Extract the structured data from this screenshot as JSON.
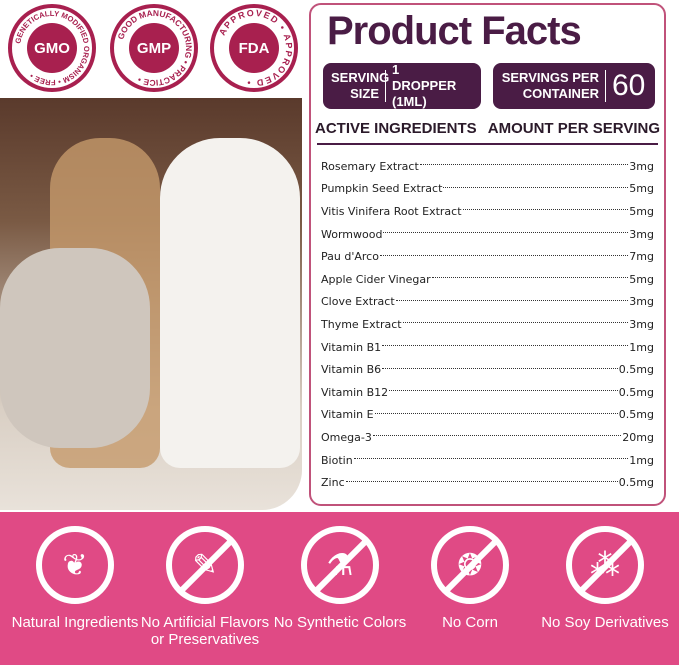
{
  "badges": [
    {
      "center": "GMO",
      "ring": "GENETICALLY MODIFIED ORGANISM • FREE •"
    },
    {
      "center": "GMP",
      "ring": "GOOD MANUFACTURING • PRACTICE •"
    },
    {
      "center": "FDA",
      "ring": "APPROVED • APPROVED •"
    }
  ],
  "facts": {
    "title": "Product Facts",
    "serving_size_label": "SERVING SIZE",
    "serving_size_value": "1 DROPPER (1ML)",
    "servings_label": "SERVINGS PER CONTAINER",
    "servings_value": "60",
    "col_ingredients": "ACTIVE INGREDIENTS",
    "col_amount": "AMOUNT PER SERVING",
    "ingredients": [
      {
        "name": "Rosemary Extract",
        "amount": "3mg"
      },
      {
        "name": "Pumpkin Seed Extract",
        "amount": "5mg"
      },
      {
        "name": "Vitis Vinifera Root Extract",
        "amount": "5mg"
      },
      {
        "name": "Wormwood",
        "amount": "3mg"
      },
      {
        "name": "Pau d'Arco",
        "amount": "7mg"
      },
      {
        "name": "Apple Cider Vinegar",
        "amount": "5mg"
      },
      {
        "name": "Clove Extract",
        "amount": "3mg"
      },
      {
        "name": "Thyme  Extract",
        "amount": "3mg"
      },
      {
        "name": "Vitamin B1",
        "amount": "1mg"
      },
      {
        "name": "Vitamin B6",
        "amount": "0.5mg"
      },
      {
        "name": "Vitamin B12",
        "amount": "0.5mg"
      },
      {
        "name": "Vitamin E",
        "amount": "0.5mg"
      },
      {
        "name": "Omega-3",
        "amount": "20mg"
      },
      {
        "name": "Biotin",
        "amount": "1mg"
      },
      {
        "name": "Zinc",
        "amount": "0.5mg"
      }
    ]
  },
  "features": [
    {
      "label": "Natural Ingredients",
      "icon": "leaf-icon",
      "glyph": "❦"
    },
    {
      "label": "No Artificial Flavors or Preservatives",
      "icon": "dropper-icon",
      "glyph": "✎"
    },
    {
      "label": "No Synthetic Colors",
      "icon": "flask-icon",
      "glyph": "⚗"
    },
    {
      "label": "No Corn",
      "icon": "corn-icon",
      "glyph": "❂"
    },
    {
      "label": "No Soy Derivatives",
      "icon": "soybean-icon",
      "glyph": "⁂"
    }
  ],
  "colors": {
    "brand_purple": "#4a1c45",
    "band_pink": "#e04a85",
    "badge_red": "#a8204f"
  }
}
